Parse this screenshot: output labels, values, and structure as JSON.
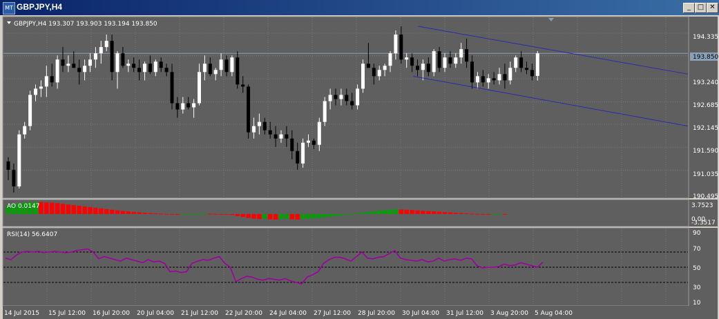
{
  "window": {
    "title": "GBPJPY,H4",
    "app_icon": "metatrader-icon",
    "buttons": {
      "minimize": "_",
      "restore": "□",
      "close": "✕"
    }
  },
  "main_chart": {
    "label": "GBPJPY,H4  193.307 193.903 193.194 193.850",
    "price_ticks": [
      "194.335",
      "193.240",
      "192.685",
      "192.145",
      "191.590",
      "191.035",
      "190.495"
    ],
    "current_price": "193.850",
    "colors": {
      "background": "#5f5f5f",
      "bull": "#ffffff",
      "bear": "#000000",
      "channel": "#2b2bb0",
      "grid": "#7a7a7a",
      "price_line": "#8aa0b8"
    }
  },
  "ao": {
    "label": "AO 0.0147",
    "ticks": [
      "3.7523",
      "0.00",
      "-3.3517"
    ],
    "colors": {
      "up": "#00a000",
      "down": "#ff0000"
    }
  },
  "rsi": {
    "label": "RSI(14) 56.6407",
    "ticks": [
      "90",
      "70",
      "50",
      "30",
      "10"
    ],
    "levels": [
      70,
      50,
      30
    ],
    "color": "#a000a0"
  },
  "time_axis": [
    "14 Jul 2015",
    "15 Jul 12:00",
    "16 Jul 20:00",
    "20 Jul 04:00",
    "21 Jul 12:00",
    "22 Jul 20:00",
    "24 Jul 04:00",
    "27 Jul 12:00",
    "28 Jul 20:00",
    "30 Jul 04:00",
    "31 Jul 12:00",
    "3 Aug 20:00",
    "5 Aug 04:00"
  ],
  "chart_data": [
    {
      "type": "candlestick",
      "title": "GBPJPY,H4",
      "ylim": [
        190.4,
        194.7
      ],
      "candles": [
        {
          "o": 191.25,
          "h": 191.35,
          "l": 190.8,
          "c": 191.05
        },
        {
          "o": 191.05,
          "h": 191.2,
          "l": 190.5,
          "c": 190.65
        },
        {
          "o": 190.65,
          "h": 192.0,
          "l": 190.6,
          "c": 191.9
        },
        {
          "o": 191.9,
          "h": 192.2,
          "l": 191.8,
          "c": 192.1
        },
        {
          "o": 192.1,
          "h": 192.95,
          "l": 192.0,
          "c": 192.85
        },
        {
          "o": 192.85,
          "h": 193.1,
          "l": 192.7,
          "c": 193.0
        },
        {
          "o": 193.0,
          "h": 193.2,
          "l": 192.8,
          "c": 193.05
        },
        {
          "o": 193.05,
          "h": 193.55,
          "l": 192.8,
          "c": 193.3
        },
        {
          "o": 193.3,
          "h": 193.6,
          "l": 193.05,
          "c": 193.15
        },
        {
          "o": 193.15,
          "h": 193.8,
          "l": 193.0,
          "c": 193.7
        },
        {
          "o": 193.7,
          "h": 194.0,
          "l": 193.4,
          "c": 193.55
        },
        {
          "o": 193.55,
          "h": 193.8,
          "l": 193.4,
          "c": 193.6
        },
        {
          "o": 193.6,
          "h": 193.9,
          "l": 193.5,
          "c": 193.5
        },
        {
          "o": 193.5,
          "h": 193.7,
          "l": 193.1,
          "c": 193.4
        },
        {
          "o": 193.4,
          "h": 193.7,
          "l": 193.2,
          "c": 193.55
        },
        {
          "o": 193.55,
          "h": 193.85,
          "l": 193.4,
          "c": 193.7
        },
        {
          "o": 193.7,
          "h": 194.0,
          "l": 193.5,
          "c": 193.85
        },
        {
          "o": 193.85,
          "h": 194.15,
          "l": 193.6,
          "c": 194.0
        },
        {
          "o": 194.0,
          "h": 194.3,
          "l": 193.9,
          "c": 194.15
        },
        {
          "o": 194.15,
          "h": 194.3,
          "l": 193.2,
          "c": 193.4
        },
        {
          "o": 193.4,
          "h": 193.9,
          "l": 193.0,
          "c": 193.85
        },
        {
          "o": 193.85,
          "h": 194.0,
          "l": 193.5,
          "c": 193.55
        },
        {
          "o": 193.55,
          "h": 193.7,
          "l": 193.4,
          "c": 193.6
        },
        {
          "o": 193.6,
          "h": 193.75,
          "l": 193.4,
          "c": 193.5
        },
        {
          "o": 193.5,
          "h": 193.7,
          "l": 193.2,
          "c": 193.4
        },
        {
          "o": 193.4,
          "h": 193.65,
          "l": 193.2,
          "c": 193.6
        },
        {
          "o": 193.6,
          "h": 193.8,
          "l": 193.35,
          "c": 193.4
        },
        {
          "o": 193.4,
          "h": 193.7,
          "l": 193.3,
          "c": 193.65
        },
        {
          "o": 193.65,
          "h": 193.75,
          "l": 193.4,
          "c": 193.5
        },
        {
          "o": 193.5,
          "h": 193.6,
          "l": 193.3,
          "c": 193.4
        },
        {
          "o": 193.4,
          "h": 193.6,
          "l": 192.5,
          "c": 192.65
        },
        {
          "o": 192.65,
          "h": 192.8,
          "l": 192.3,
          "c": 192.5
        },
        {
          "o": 192.5,
          "h": 192.8,
          "l": 192.4,
          "c": 192.65
        },
        {
          "o": 192.65,
          "h": 192.8,
          "l": 192.5,
          "c": 192.55
        },
        {
          "o": 192.55,
          "h": 192.75,
          "l": 192.3,
          "c": 192.65
        },
        {
          "o": 192.65,
          "h": 193.6,
          "l": 192.6,
          "c": 193.4
        },
        {
          "o": 193.4,
          "h": 193.8,
          "l": 193.2,
          "c": 193.6
        },
        {
          "o": 193.6,
          "h": 193.75,
          "l": 193.3,
          "c": 193.35
        },
        {
          "o": 193.35,
          "h": 193.5,
          "l": 193.2,
          "c": 193.45
        },
        {
          "o": 193.45,
          "h": 193.85,
          "l": 193.3,
          "c": 193.7
        },
        {
          "o": 193.7,
          "h": 193.8,
          "l": 193.3,
          "c": 193.4
        },
        {
          "o": 193.4,
          "h": 193.8,
          "l": 193.3,
          "c": 193.75
        },
        {
          "o": 193.75,
          "h": 193.9,
          "l": 193.0,
          "c": 193.1
        },
        {
          "o": 193.1,
          "h": 193.3,
          "l": 192.9,
          "c": 193.05
        },
        {
          "o": 193.05,
          "h": 193.1,
          "l": 191.8,
          "c": 191.95
        },
        {
          "o": 191.95,
          "h": 192.3,
          "l": 191.8,
          "c": 192.1
        },
        {
          "o": 192.1,
          "h": 192.4,
          "l": 191.9,
          "c": 192.2
        },
        {
          "o": 192.2,
          "h": 192.3,
          "l": 191.9,
          "c": 192.0
        },
        {
          "o": 192.0,
          "h": 192.2,
          "l": 191.8,
          "c": 191.9
        },
        {
          "o": 191.9,
          "h": 192.1,
          "l": 191.6,
          "c": 191.8
        },
        {
          "o": 191.8,
          "h": 192.0,
          "l": 191.7,
          "c": 191.9
        },
        {
          "o": 191.9,
          "h": 192.1,
          "l": 191.6,
          "c": 191.8
        },
        {
          "o": 191.8,
          "h": 192.0,
          "l": 191.3,
          "c": 191.5
        },
        {
          "o": 191.5,
          "h": 191.7,
          "l": 191.05,
          "c": 191.2
        },
        {
          "o": 191.2,
          "h": 191.8,
          "l": 191.1,
          "c": 191.7
        },
        {
          "o": 191.7,
          "h": 191.9,
          "l": 191.6,
          "c": 191.75
        },
        {
          "o": 191.75,
          "h": 191.8,
          "l": 191.55,
          "c": 191.65
        },
        {
          "o": 191.65,
          "h": 192.3,
          "l": 191.5,
          "c": 192.2
        },
        {
          "o": 192.2,
          "h": 192.8,
          "l": 192.1,
          "c": 192.7
        },
        {
          "o": 192.7,
          "h": 193.0,
          "l": 192.5,
          "c": 192.85
        },
        {
          "o": 192.85,
          "h": 193.0,
          "l": 192.6,
          "c": 192.75
        },
        {
          "o": 192.75,
          "h": 193.0,
          "l": 192.6,
          "c": 192.85
        },
        {
          "o": 192.85,
          "h": 193.0,
          "l": 192.6,
          "c": 192.7
        },
        {
          "o": 192.7,
          "h": 192.9,
          "l": 192.5,
          "c": 192.6
        },
        {
          "o": 192.6,
          "h": 193.1,
          "l": 192.5,
          "c": 193.0
        },
        {
          "o": 193.0,
          "h": 193.7,
          "l": 192.9,
          "c": 193.6
        },
        {
          "o": 193.6,
          "h": 194.1,
          "l": 193.5,
          "c": 193.5
        },
        {
          "o": 193.5,
          "h": 193.6,
          "l": 193.1,
          "c": 193.3
        },
        {
          "o": 193.3,
          "h": 193.55,
          "l": 193.2,
          "c": 193.45
        },
        {
          "o": 193.45,
          "h": 193.6,
          "l": 193.3,
          "c": 193.55
        },
        {
          "o": 193.55,
          "h": 193.9,
          "l": 193.4,
          "c": 193.85
        },
        {
          "o": 193.85,
          "h": 194.4,
          "l": 193.7,
          "c": 194.3
        },
        {
          "o": 194.3,
          "h": 194.5,
          "l": 193.6,
          "c": 193.7
        },
        {
          "o": 193.7,
          "h": 193.85,
          "l": 193.5,
          "c": 193.75
        },
        {
          "o": 193.75,
          "h": 193.85,
          "l": 193.4,
          "c": 193.55
        },
        {
          "o": 193.55,
          "h": 193.7,
          "l": 193.3,
          "c": 193.45
        },
        {
          "o": 193.45,
          "h": 193.7,
          "l": 193.2,
          "c": 193.6
        },
        {
          "o": 193.6,
          "h": 193.75,
          "l": 193.3,
          "c": 193.4
        },
        {
          "o": 193.4,
          "h": 193.95,
          "l": 193.3,
          "c": 193.9
        },
        {
          "o": 193.9,
          "h": 194.0,
          "l": 193.4,
          "c": 193.5
        },
        {
          "o": 193.5,
          "h": 193.85,
          "l": 193.4,
          "c": 193.75
        },
        {
          "o": 193.75,
          "h": 193.9,
          "l": 193.5,
          "c": 193.6
        },
        {
          "o": 193.6,
          "h": 193.85,
          "l": 193.5,
          "c": 193.75
        },
        {
          "o": 193.75,
          "h": 194.1,
          "l": 193.6,
          "c": 193.95
        },
        {
          "o": 193.95,
          "h": 194.2,
          "l": 193.5,
          "c": 193.65
        },
        {
          "o": 193.65,
          "h": 193.8,
          "l": 193.0,
          "c": 193.15
        },
        {
          "o": 193.15,
          "h": 193.4,
          "l": 193.0,
          "c": 193.3
        },
        {
          "o": 193.3,
          "h": 193.45,
          "l": 193.05,
          "c": 193.15
        },
        {
          "o": 193.15,
          "h": 193.35,
          "l": 193.0,
          "c": 193.25
        },
        {
          "o": 193.25,
          "h": 193.4,
          "l": 193.1,
          "c": 193.2
        },
        {
          "o": 193.2,
          "h": 193.5,
          "l": 193.1,
          "c": 193.35
        },
        {
          "o": 193.35,
          "h": 193.6,
          "l": 193.0,
          "c": 193.2
        },
        {
          "o": 193.2,
          "h": 193.65,
          "l": 193.1,
          "c": 193.5
        },
        {
          "o": 193.5,
          "h": 193.8,
          "l": 193.4,
          "c": 193.75
        },
        {
          "o": 193.75,
          "h": 193.9,
          "l": 193.4,
          "c": 193.5
        },
        {
          "o": 193.5,
          "h": 193.65,
          "l": 193.35,
          "c": 193.45
        },
        {
          "o": 193.45,
          "h": 193.6,
          "l": 193.2,
          "c": 193.3
        },
        {
          "o": 193.307,
          "h": 193.903,
          "l": 193.194,
          "c": 193.85
        }
      ],
      "channel": {
        "upper": [
          194.5,
          193.35
        ],
        "lower": [
          193.3,
          192.1
        ]
      }
    },
    {
      "type": "bar",
      "title": "AO 0.0147",
      "ylim": [
        -3.3517,
        3.7523
      ],
      "values": [
        2.6,
        3.0,
        3.3,
        3.5,
        3.6,
        3.65,
        3.6,
        3.5,
        3.45,
        3.3,
        3.1,
        2.9,
        2.7,
        2.5,
        2.3,
        2.1,
        1.9,
        1.7,
        1.5,
        1.3,
        1.1,
        0.95,
        0.8,
        0.65,
        0.5,
        0.38,
        0.28,
        0.2,
        0.12,
        0.05,
        -0.05,
        -0.15,
        -0.1,
        -0.05,
        0.0,
        0.08,
        0.15,
        0.1,
        0.05,
        0.0,
        -0.1,
        -0.3,
        -0.6,
        -0.9,
        -1.2,
        -1.4,
        -1.5,
        -1.4,
        -1.6,
        -1.7,
        -1.5,
        -1.4,
        -1.6,
        -1.7,
        -1.5,
        -1.4,
        -1.3,
        -1.2,
        -1.0,
        -0.8,
        -0.6,
        -0.4,
        -0.2,
        0.0,
        0.2,
        0.4,
        0.6,
        0.8,
        1.0,
        1.2,
        1.3,
        1.4,
        1.35,
        1.3,
        1.2,
        1.1,
        1.0,
        0.9,
        0.8,
        0.7,
        0.6,
        0.5,
        0.4,
        0.3,
        0.2,
        0.1,
        0.05,
        0.0,
        -0.05,
        0.0,
        0.02,
        0.0147
      ]
    },
    {
      "type": "line",
      "title": "RSI(14) 56.6407",
      "ylim": [
        0,
        100
      ],
      "values": [
        62,
        60,
        66,
        70,
        71,
        70,
        71,
        69,
        70,
        71,
        70,
        69,
        70,
        72,
        73,
        74,
        70,
        61,
        64,
        62,
        60,
        58,
        62,
        60,
        58,
        56,
        60,
        57,
        58,
        55,
        44,
        45,
        43,
        44,
        55,
        58,
        60,
        59,
        62,
        64,
        55,
        50,
        31,
        35,
        38,
        37,
        34,
        33,
        35,
        34,
        33,
        35,
        32,
        30,
        28,
        37,
        40,
        44,
        55,
        60,
        63,
        63,
        61,
        58,
        64,
        70,
        62,
        61,
        63,
        64,
        68,
        72,
        62,
        60,
        59,
        58,
        60,
        57,
        58,
        62,
        58,
        60,
        61,
        59,
        62,
        61,
        52,
        49,
        50,
        50,
        51,
        54,
        52,
        53,
        56,
        54,
        52,
        50,
        56.6407
      ]
    }
  ]
}
